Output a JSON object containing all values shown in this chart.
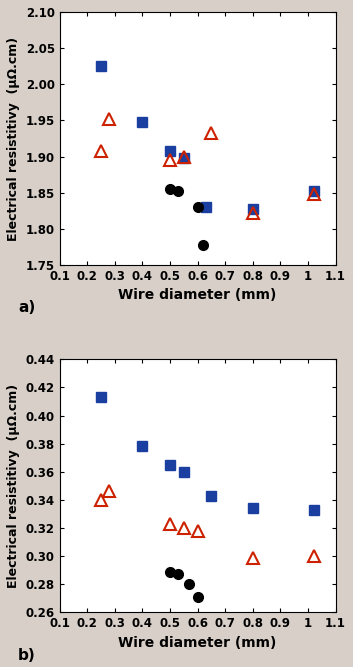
{
  "plot_a": {
    "xlabel": "Wire diameter (mm)",
    "ylabel": "Electrical resistitivy  (μΩ.cm)",
    "xlim": [
      0.1,
      1.1
    ],
    "ylim": [
      1.75,
      2.1
    ],
    "yticks": [
      1.75,
      1.8,
      1.85,
      1.9,
      1.95,
      2.0,
      2.05,
      2.1
    ],
    "xticks": [
      0.1,
      0.2,
      0.3,
      0.4,
      0.5,
      0.6,
      0.7,
      0.8,
      0.9,
      1.0,
      1.1
    ],
    "blue_squares": [
      [
        0.25,
        2.025
      ],
      [
        0.4,
        1.948
      ],
      [
        0.5,
        1.908
      ],
      [
        0.55,
        1.898
      ],
      [
        0.63,
        1.83
      ],
      [
        0.8,
        1.828
      ],
      [
        1.02,
        1.853
      ]
    ],
    "red_triangles": [
      [
        0.25,
        1.908
      ],
      [
        0.28,
        1.952
      ],
      [
        0.5,
        1.895
      ],
      [
        0.55,
        1.9
      ],
      [
        0.65,
        1.932
      ],
      [
        0.8,
        1.822
      ],
      [
        1.02,
        1.848
      ]
    ],
    "black_circles": [
      [
        0.5,
        1.855
      ],
      [
        0.53,
        1.853
      ],
      [
        0.6,
        1.83
      ],
      [
        0.62,
        1.778
      ]
    ]
  },
  "plot_b": {
    "xlabel": "Wire diameter (mm)",
    "ylabel": "Electrical resistitivy  (μΩ.cm)",
    "xlim": [
      0.1,
      1.1
    ],
    "ylim": [
      0.26,
      0.44
    ],
    "yticks": [
      0.26,
      0.28,
      0.3,
      0.32,
      0.34,
      0.36,
      0.38,
      0.4,
      0.42,
      0.44
    ],
    "xticks": [
      0.1,
      0.2,
      0.3,
      0.4,
      0.5,
      0.6,
      0.7,
      0.8,
      0.9,
      1.0,
      1.1
    ],
    "blue_squares": [
      [
        0.25,
        0.413
      ],
      [
        0.4,
        0.378
      ],
      [
        0.5,
        0.365
      ],
      [
        0.55,
        0.36
      ],
      [
        0.65,
        0.343
      ],
      [
        0.8,
        0.334
      ],
      [
        1.02,
        0.333
      ]
    ],
    "red_triangles": [
      [
        0.25,
        0.34
      ],
      [
        0.28,
        0.346
      ],
      [
        0.5,
        0.323
      ],
      [
        0.55,
        0.32
      ],
      [
        0.6,
        0.318
      ],
      [
        0.8,
        0.299
      ],
      [
        1.02,
        0.3
      ]
    ],
    "black_circles": [
      [
        0.5,
        0.289
      ],
      [
        0.53,
        0.287
      ],
      [
        0.57,
        0.28
      ],
      [
        0.6,
        0.271
      ]
    ]
  },
  "blue_color": "#1a3fa0",
  "red_color": "#cc2200",
  "black_color": "#000000",
  "marker_size": 7,
  "bg_color": "#ffffff",
  "fig_bg_color": "#d8d0c8"
}
